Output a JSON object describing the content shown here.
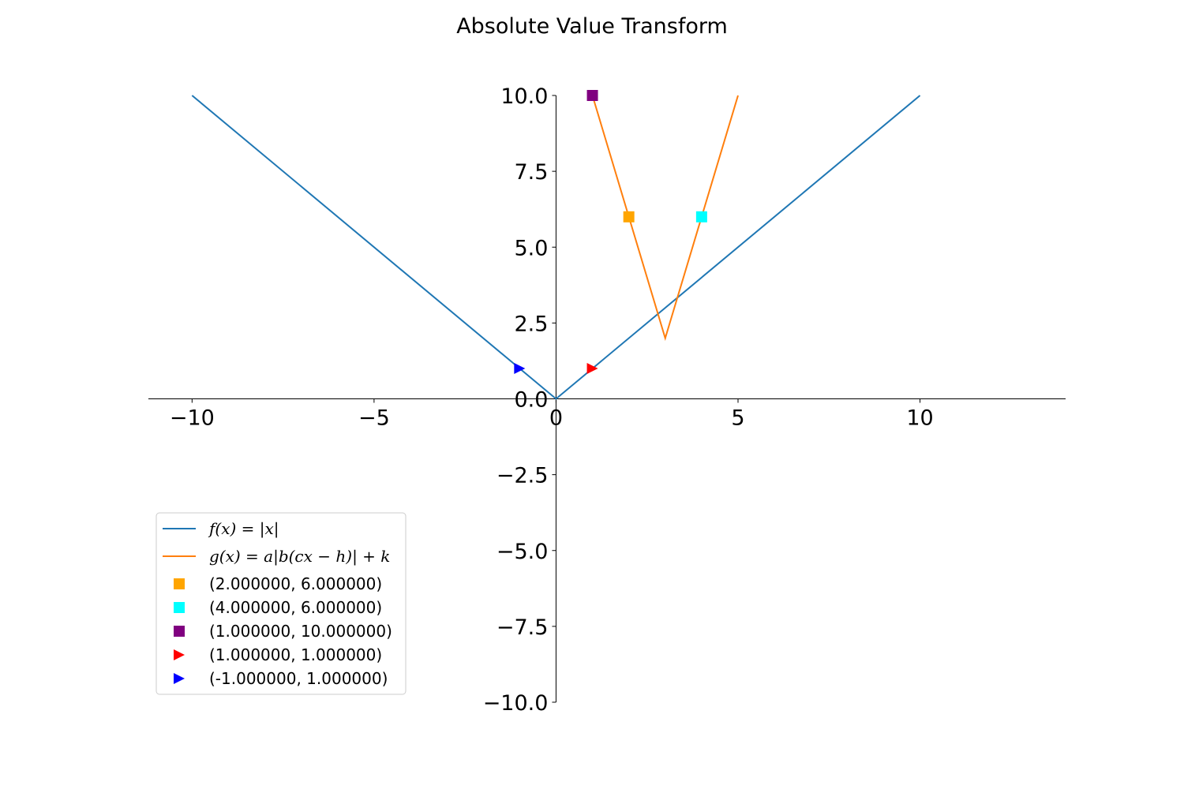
{
  "chart_data": {
    "type": "line",
    "title": "Absolute Value Transform",
    "xlim": [
      -11.2,
      14
    ],
    "ylim": [
      -10,
      10
    ],
    "xticks": [
      -10,
      -5,
      0,
      5,
      10
    ],
    "xtick_labels": [
      "−10",
      "−5",
      "0",
      "5",
      "10"
    ],
    "yticks": [
      -10,
      -7.5,
      -5,
      -2.5,
      0,
      2.5,
      5,
      7.5,
      10
    ],
    "ytick_labels": [
      "−10.0",
      "−7.5",
      "−5.0",
      "−2.5",
      "0.0",
      "2.5",
      "5.0",
      "7.5",
      "10.0"
    ],
    "grid": false,
    "legend_position": "lower-left",
    "series": [
      {
        "name": "f(x) = |x|",
        "color": "#1f77b4",
        "x": [
          -10,
          0,
          10
        ],
        "y": [
          10,
          0,
          10
        ]
      },
      {
        "name": "g(x) = a|b(cx − h)| + k",
        "color": "#ff7f0e",
        "x": [
          1,
          3,
          5
        ],
        "y": [
          10,
          2,
          10
        ]
      }
    ],
    "points": [
      {
        "label": "(2.000000, 6.000000)",
        "x": 2,
        "y": 6,
        "color": "#ffa500",
        "marker": "square"
      },
      {
        "label": "(4.000000, 6.000000)",
        "x": 4,
        "y": 6,
        "color": "#00ffff",
        "marker": "square"
      },
      {
        "label": "(1.000000, 10.000000)",
        "x": 1,
        "y": 10,
        "color": "#800080",
        "marker": "square"
      },
      {
        "label": "(1.000000, 1.000000)",
        "x": 1,
        "y": 1,
        "color": "#ff0000",
        "marker": "triangle-right"
      },
      {
        "label": "(-1.000000, 1.000000)",
        "x": -1,
        "y": 1,
        "color": "#0000ff",
        "marker": "triangle-right"
      }
    ]
  }
}
